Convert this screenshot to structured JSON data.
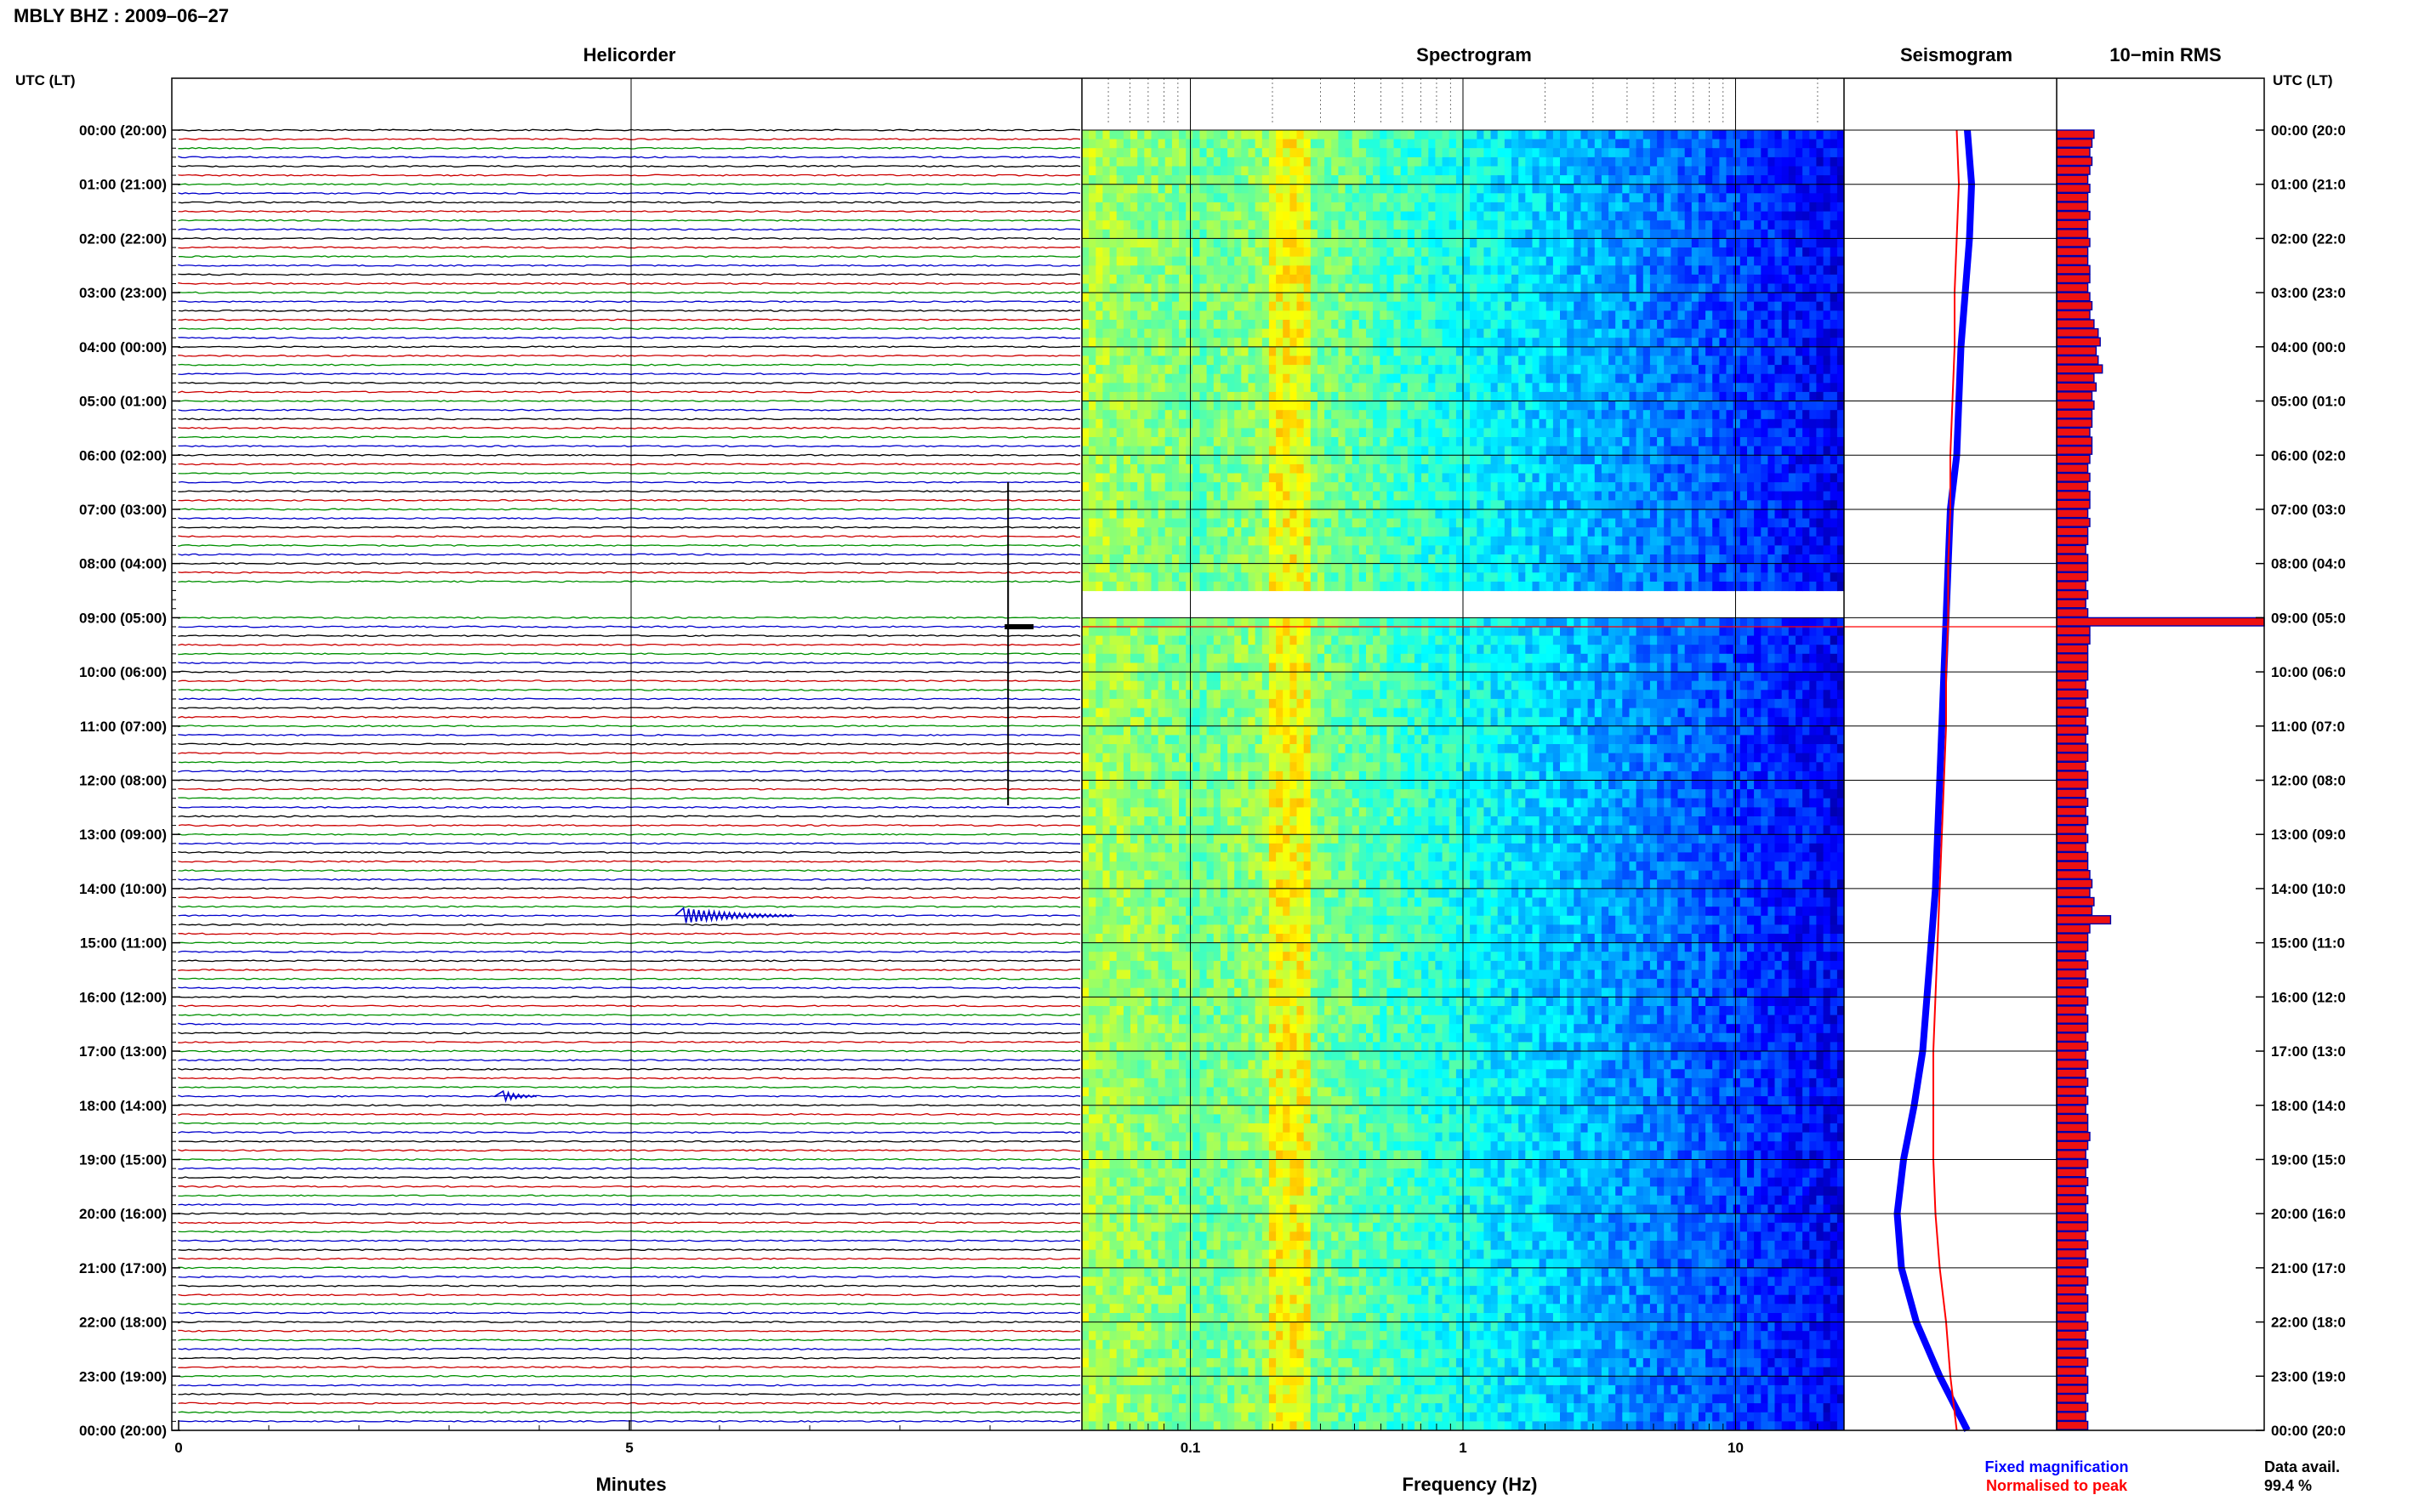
{
  "header": {
    "title": "MBLY BHZ : 2009–06–27"
  },
  "panels": {
    "helicorder": "Helicorder",
    "spectrogram": "Spectrogram",
    "seismogram": "Seismogram",
    "rms": "10−min RMS"
  },
  "time_axis": {
    "label_left": "UTC (LT)",
    "label_right": "UTC (LT)",
    "ticks_left": [
      "00:00 (20:00)",
      "01:00 (21:00)",
      "02:00 (22:00)",
      "03:00 (23:00)",
      "04:00 (00:00)",
      "05:00 (01:00)",
      "06:00 (02:00)",
      "07:00 (03:00)",
      "08:00 (04:00)",
      "09:00 (05:00)",
      "10:00 (06:00)",
      "11:00 (07:00)",
      "12:00 (08:00)",
      "13:00 (09:00)",
      "14:00 (10:00)",
      "15:00 (11:00)",
      "16:00 (12:00)",
      "17:00 (13:00)",
      "18:00 (14:00)",
      "19:00 (15:00)",
      "20:00 (16:00)",
      "21:00 (17:00)",
      "22:00 (18:00)",
      "23:00 (19:00)",
      "00:00 (20:00)"
    ],
    "ticks_right": [
      "00:00 (20:0",
      "01:00 (21:0",
      "02:00 (22:0",
      "03:00 (23:0",
      "04:00 (00:0",
      "05:00 (01:0",
      "06:00 (02:0",
      "07:00 (03:0",
      "08:00 (04:0",
      "09:00 (05:0",
      "10:00 (06:0",
      "11:00 (07:0",
      "12:00 (08:0",
      "13:00 (09:0",
      "14:00 (10:0",
      "15:00 (11:0",
      "16:00 (12:0",
      "17:00 (13:0",
      "18:00 (14:0",
      "19:00 (15:0",
      "20:00 (16:0",
      "21:00 (17:0",
      "22:00 (18:0",
      "23:00 (19:0",
      "00:00 (20:0"
    ]
  },
  "bottom": {
    "minutes_label": "Minutes",
    "minutes_ticks": [
      "0",
      "5"
    ],
    "freq_label": "Frequency (Hz)",
    "freq_ticks": [
      "0.1",
      "1",
      "10"
    ],
    "legend_fixed": "Fixed magnification",
    "legend_normalised": "Normalised to peak",
    "data_avail_label": "Data avail.",
    "data_avail_value": "99.4 %"
  },
  "colors": {
    "trace_cycle": [
      "#000000",
      "#cc0000",
      "#009000",
      "#0000cc"
    ],
    "fixed": "#0000ff",
    "normalised": "#ff0000",
    "rms_fill": "#ee1111",
    "rms_edge": "#0000aa",
    "spectrogram_low": "#00007f",
    "spectrogram_high": "#ffff00"
  },
  "chart_data": {
    "type": "heatmap",
    "helicorder": {
      "rows_per_hour": 6,
      "minutes_per_row": 10,
      "gap_utc": [
        "08:30",
        "09:00"
      ],
      "events": [
        {
          "utc_row": "09:10",
          "minute": 9.2,
          "amplitude": "large"
        },
        {
          "utc_row": "14:30",
          "minute": 5.6,
          "amplitude": "medium"
        },
        {
          "utc_row": "17:50",
          "minute": 3.6,
          "amplitude": "small"
        }
      ]
    },
    "spectrogram": {
      "x_scale": "log",
      "xlim": [
        0.04,
        25
      ],
      "gap_utc": [
        "08:30",
        "09:00"
      ]
    },
    "seismogram": {
      "series": [
        {
          "name": "Fixed magnification",
          "profile": [
            0.58,
            0.6,
            0.59,
            0.57,
            0.55,
            0.54,
            0.53,
            0.5,
            0.49,
            0.48,
            0.47,
            0.46,
            0.45,
            0.44,
            0.43,
            0.41,
            0.39,
            0.37,
            0.33,
            0.28,
            0.25,
            0.27,
            0.34,
            0.45,
            0.58
          ]
        },
        {
          "name": "Normalised to peak",
          "profile": [
            0.53,
            0.54,
            0.53,
            0.52,
            0.52,
            0.51,
            0.5,
            0.5,
            0.49,
            0.49,
            0.48,
            0.48,
            0.47,
            0.46,
            0.45,
            0.44,
            0.43,
            0.42,
            0.42,
            0.42,
            0.43,
            0.45,
            0.48,
            0.5,
            0.53
          ]
        }
      ]
    },
    "rms": {
      "units": "relative",
      "values": [
        0.18,
        0.17,
        0.16,
        0.17,
        0.16,
        0.15,
        0.16,
        0.15,
        0.15,
        0.16,
        0.15,
        0.15,
        0.16,
        0.15,
        0.15,
        0.16,
        0.16,
        0.15,
        0.16,
        0.17,
        0.16,
        0.18,
        0.2,
        0.21,
        0.19,
        0.2,
        0.22,
        0.18,
        0.19,
        0.17,
        0.18,
        0.17,
        0.17,
        0.16,
        0.17,
        0.17,
        0.16,
        0.15,
        0.16,
        0.15,
        0.16,
        0.16,
        0.15,
        0.16,
        0.15,
        0.15,
        0.14,
        0.15,
        0.15,
        0.15,
        0.14,
        0.15,
        0.14,
        0.15,
        1.0,
        0.16,
        0.16,
        0.15,
        0.15,
        0.15,
        0.15,
        0.14,
        0.15,
        0.14,
        0.15,
        0.14,
        0.15,
        0.14,
        0.15,
        0.15,
        0.14,
        0.15,
        0.15,
        0.14,
        0.15,
        0.14,
        0.15,
        0.14,
        0.15,
        0.14,
        0.15,
        0.15,
        0.16,
        0.17,
        0.16,
        0.18,
        0.17,
        0.26,
        0.16,
        0.15,
        0.15,
        0.14,
        0.15,
        0.14,
        0.15,
        0.14,
        0.15,
        0.14,
        0.15,
        0.15,
        0.14,
        0.15,
        0.14,
        0.15,
        0.14,
        0.15,
        0.14,
        0.15,
        0.14,
        0.15,
        0.15,
        0.16,
        0.15,
        0.14,
        0.15,
        0.14,
        0.15,
        0.14,
        0.15,
        0.14,
        0.15,
        0.15,
        0.14,
        0.15,
        0.14,
        0.15,
        0.14,
        0.15,
        0.14,
        0.15,
        0.15,
        0.14,
        0.15,
        0.14,
        0.15,
        0.14,
        0.15,
        0.14,
        0.15,
        0.15,
        0.14,
        0.15,
        0.14,
        0.15
      ]
    }
  }
}
